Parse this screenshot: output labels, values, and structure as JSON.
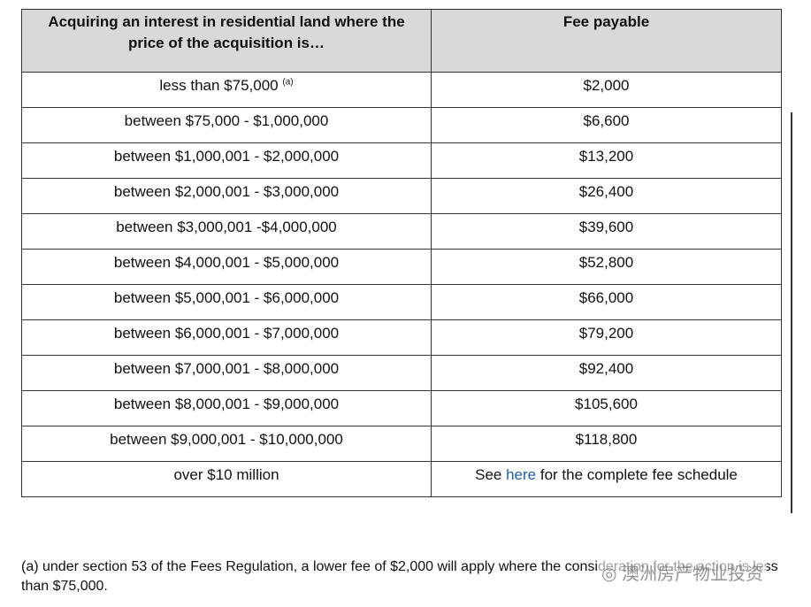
{
  "table": {
    "header": [
      "Acquiring an interest in residential land where the price of the acquisition is…",
      "Fee payable"
    ],
    "rows": [
      {
        "price": "less than $75,000",
        "note": "(a)",
        "fee": "$2,000"
      },
      {
        "price": "between $75,000 - $1,000,000",
        "fee": "$6,600"
      },
      {
        "price": "between $1,000,001 - $2,000,000",
        "fee": "$13,200"
      },
      {
        "price": "between $2,000,001 - $3,000,000",
        "fee": "$26,400"
      },
      {
        "price": "between $3,000,001 -$4,000,000",
        "fee": "$39,600"
      },
      {
        "price": "between $4,000,001 - $5,000,000",
        "fee": "$52,800"
      },
      {
        "price": "between $5,000,001 - $6,000,000",
        "fee": "$66,000"
      },
      {
        "price": "between $6,000,001 - $7,000,000",
        "fee": "$79,200"
      },
      {
        "price": "between $7,000,001 - $8,000,000",
        "fee": "$92,400"
      },
      {
        "price": "between $8,000,001 - $9,000,000",
        "fee": "$105,600"
      },
      {
        "price": "between $9,000,001 - $10,000,000",
        "fee": "$118,800"
      },
      {
        "price": "over $10 million",
        "fee_parts": [
          "See",
          "here",
          "for the complete fee schedule"
        ]
      }
    ]
  },
  "footnote": "(a) under section 53 of the Fees Regulation, a lower fee of $2,000 will apply where the consideration for the action is less than $75,000.",
  "watermark": "澳洲房产物业投资"
}
